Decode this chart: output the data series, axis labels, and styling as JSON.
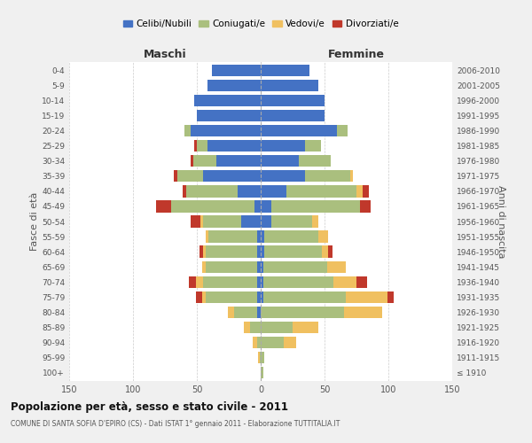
{
  "age_groups": [
    "100+",
    "95-99",
    "90-94",
    "85-89",
    "80-84",
    "75-79",
    "70-74",
    "65-69",
    "60-64",
    "55-59",
    "50-54",
    "45-49",
    "40-44",
    "35-39",
    "30-34",
    "25-29",
    "20-24",
    "15-19",
    "10-14",
    "5-9",
    "0-4"
  ],
  "birth_years": [
    "≤ 1910",
    "1911-1915",
    "1916-1920",
    "1921-1925",
    "1926-1930",
    "1931-1935",
    "1936-1940",
    "1941-1945",
    "1946-1950",
    "1951-1955",
    "1956-1960",
    "1961-1965",
    "1966-1970",
    "1971-1975",
    "1976-1980",
    "1981-1985",
    "1986-1990",
    "1991-1995",
    "1996-2000",
    "2001-2005",
    "2006-2010"
  ],
  "maschi": {
    "celibe": [
      0,
      0,
      0,
      0,
      3,
      3,
      3,
      3,
      3,
      3,
      15,
      5,
      18,
      45,
      35,
      42,
      55,
      50,
      52,
      42,
      38
    ],
    "coniugato": [
      0,
      1,
      3,
      8,
      18,
      40,
      42,
      40,
      40,
      38,
      30,
      65,
      40,
      20,
      18,
      8,
      5,
      0,
      0,
      0,
      0
    ],
    "vedovo": [
      0,
      1,
      3,
      5,
      5,
      3,
      6,
      3,
      2,
      2,
      2,
      0,
      0,
      0,
      0,
      0,
      0,
      0,
      0,
      0,
      0
    ],
    "divorziato": [
      0,
      0,
      0,
      0,
      0,
      5,
      5,
      0,
      3,
      0,
      8,
      12,
      3,
      3,
      2,
      2,
      0,
      0,
      0,
      0,
      0
    ]
  },
  "femmine": {
    "nubile": [
      0,
      0,
      0,
      0,
      0,
      2,
      2,
      2,
      3,
      3,
      8,
      8,
      20,
      35,
      30,
      35,
      60,
      50,
      50,
      45,
      38
    ],
    "coniugata": [
      2,
      3,
      18,
      25,
      65,
      65,
      55,
      50,
      45,
      42,
      32,
      70,
      55,
      35,
      25,
      12,
      8,
      0,
      0,
      0,
      0
    ],
    "vedova": [
      0,
      0,
      10,
      20,
      30,
      32,
      18,
      15,
      5,
      8,
      5,
      0,
      5,
      2,
      0,
      0,
      0,
      0,
      0,
      0,
      0
    ],
    "divorziata": [
      0,
      0,
      0,
      0,
      0,
      5,
      8,
      0,
      3,
      0,
      0,
      8,
      5,
      0,
      0,
      0,
      0,
      0,
      0,
      0,
      0
    ]
  },
  "colors": {
    "celibe": "#4472C4",
    "coniugato": "#AABF7E",
    "vedovo": "#F0C060",
    "divorziato": "#C0382B"
  },
  "title_main": "Popolazione per età, sesso e stato civile - 2011",
  "title_sub": "COMUNE DI SANTA SOFIA D'EPIRO (CS) - Dati ISTAT 1° gennaio 2011 - Elaborazione TUTTITALIA.IT",
  "xlabel_left": "Maschi",
  "xlabel_right": "Femmine",
  "ylabel_left": "Fasce di età",
  "ylabel_right": "Anni di nascita",
  "legend_labels": [
    "Celibi/Nubili",
    "Coniugati/e",
    "Vedovi/e",
    "Divorziati/e"
  ],
  "xlim": 150,
  "bg_color": "#f0f0f0",
  "plot_bg": "#ffffff"
}
